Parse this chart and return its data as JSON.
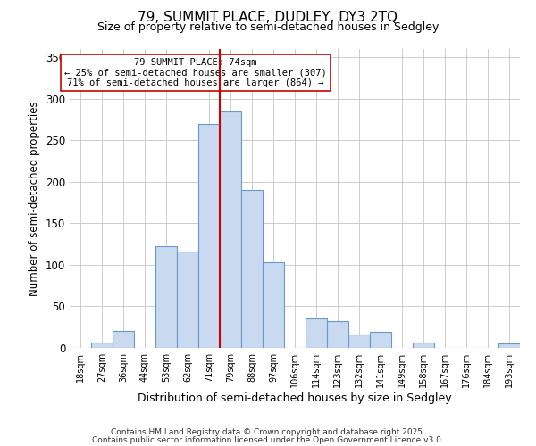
{
  "title": "79, SUMMIT PLACE, DUDLEY, DY3 2TQ",
  "subtitle": "Size of property relative to semi-detached houses in Sedgley",
  "xlabel": "Distribution of semi-detached houses by size in Sedgley",
  "ylabel": "Number of semi-detached properties",
  "bar_labels": [
    "18sqm",
    "27sqm",
    "36sqm",
    "44sqm",
    "53sqm",
    "62sqm",
    "71sqm",
    "79sqm",
    "88sqm",
    "97sqm",
    "106sqm",
    "114sqm",
    "123sqm",
    "132sqm",
    "141sqm",
    "149sqm",
    "158sqm",
    "167sqm",
    "176sqm",
    "184sqm",
    "193sqm"
  ],
  "bar_values": [
    0,
    6,
    20,
    0,
    122,
    116,
    270,
    285,
    190,
    103,
    0,
    36,
    32,
    16,
    19,
    0,
    6,
    0,
    0,
    0,
    5
  ],
  "bar_color": "#c9d9f0",
  "bar_edge_color": "#6699cc",
  "vline_color": "#cc0000",
  "annotation_title": "79 SUMMIT PLACE: 74sqm",
  "annotation_line1": "← 25% of semi-detached houses are smaller (307)",
  "annotation_line2": "71% of semi-detached houses are larger (864) →",
  "annotation_box_color": "#ffffff",
  "annotation_box_edge": "#cc0000",
  "ylim": [
    0,
    360
  ],
  "yticks": [
    0,
    50,
    100,
    150,
    200,
    250,
    300,
    350
  ],
  "background_color": "#ffffff",
  "grid_color": "#cccccc",
  "footer1": "Contains HM Land Registry data © Crown copyright and database right 2025.",
  "footer2": "Contains public sector information licensed under the Open Government Licence v3.0."
}
